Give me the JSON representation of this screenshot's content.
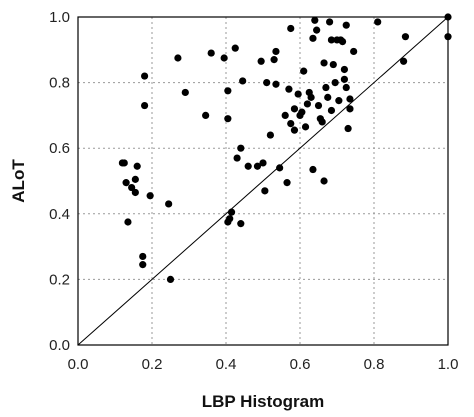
{
  "chart_data": {
    "type": "scatter",
    "title": "",
    "xlabel": "LBP Histogram",
    "ylabel": "ALoT",
    "xlim": [
      0.0,
      1.0
    ],
    "ylim": [
      0.0,
      1.0
    ],
    "xticks": [
      "0.0",
      "0.2",
      "0.4",
      "0.6",
      "0.8",
      "1.0"
    ],
    "yticks": [
      "0.0",
      "0.2",
      "0.4",
      "0.6",
      "0.8",
      "1.0"
    ],
    "grid": true,
    "reference_line": "y = x",
    "series": [
      {
        "points": [
          [
            0.12,
            0.555
          ],
          [
            0.125,
            0.555
          ],
          [
            0.13,
            0.495
          ],
          [
            0.135,
            0.375
          ],
          [
            0.145,
            0.48
          ],
          [
            0.155,
            0.465
          ],
          [
            0.16,
            0.545
          ],
          [
            0.155,
            0.505
          ],
          [
            0.175,
            0.245
          ],
          [
            0.175,
            0.27
          ],
          [
            0.18,
            0.82
          ],
          [
            0.18,
            0.73
          ],
          [
            0.195,
            0.455
          ],
          [
            0.245,
            0.43
          ],
          [
            0.25,
            0.2
          ],
          [
            0.27,
            0.875
          ],
          [
            0.29,
            0.77
          ],
          [
            0.345,
            0.7
          ],
          [
            0.36,
            0.89
          ],
          [
            0.395,
            0.875
          ],
          [
            0.405,
            0.775
          ],
          [
            0.405,
            0.69
          ],
          [
            0.405,
            0.375
          ],
          [
            0.41,
            0.385
          ],
          [
            0.415,
            0.405
          ],
          [
            0.425,
            0.905
          ],
          [
            0.43,
            0.57
          ],
          [
            0.44,
            0.6
          ],
          [
            0.44,
            0.37
          ],
          [
            0.445,
            0.805
          ],
          [
            0.46,
            0.545
          ],
          [
            0.485,
            0.545
          ],
          [
            0.495,
            0.865
          ],
          [
            0.5,
            0.555
          ],
          [
            0.505,
            0.47
          ],
          [
            0.51,
            0.8
          ],
          [
            0.52,
            0.64
          ],
          [
            0.53,
            0.87
          ],
          [
            0.535,
            0.895
          ],
          [
            0.535,
            0.795
          ],
          [
            0.545,
            0.54
          ],
          [
            0.56,
            0.7
          ],
          [
            0.565,
            0.495
          ],
          [
            0.57,
            0.78
          ],
          [
            0.575,
            0.965
          ],
          [
            0.575,
            0.675
          ],
          [
            0.585,
            0.72
          ],
          [
            0.585,
            0.655
          ],
          [
            0.595,
            0.765
          ],
          [
            0.6,
            0.7
          ],
          [
            0.605,
            0.71
          ],
          [
            0.61,
            0.835
          ],
          [
            0.615,
            0.665
          ],
          [
            0.62,
            0.735
          ],
          [
            0.625,
            0.77
          ],
          [
            0.63,
            0.755
          ],
          [
            0.635,
            0.935
          ],
          [
            0.635,
            0.535
          ],
          [
            0.64,
            0.99
          ],
          [
            0.645,
            0.96
          ],
          [
            0.65,
            0.73
          ],
          [
            0.655,
            0.69
          ],
          [
            0.66,
            0.68
          ],
          [
            0.665,
            0.86
          ],
          [
            0.665,
            0.5
          ],
          [
            0.67,
            0.785
          ],
          [
            0.675,
            0.755
          ],
          [
            0.68,
            0.985
          ],
          [
            0.685,
            0.93
          ],
          [
            0.685,
            0.715
          ],
          [
            0.69,
            0.855
          ],
          [
            0.695,
            0.8
          ],
          [
            0.7,
            0.93
          ],
          [
            0.705,
            0.745
          ],
          [
            0.71,
            0.93
          ],
          [
            0.715,
            0.925
          ],
          [
            0.72,
            0.84
          ],
          [
            0.72,
            0.81
          ],
          [
            0.725,
            0.975
          ],
          [
            0.725,
            0.785
          ],
          [
            0.73,
            0.66
          ],
          [
            0.735,
            0.75
          ],
          [
            0.735,
            0.72
          ],
          [
            0.745,
            0.895
          ],
          [
            0.81,
            0.985
          ],
          [
            0.88,
            0.865
          ],
          [
            0.885,
            0.94
          ],
          [
            1.0,
            1.0
          ],
          [
            1.0,
            0.94
          ]
        ]
      }
    ]
  }
}
